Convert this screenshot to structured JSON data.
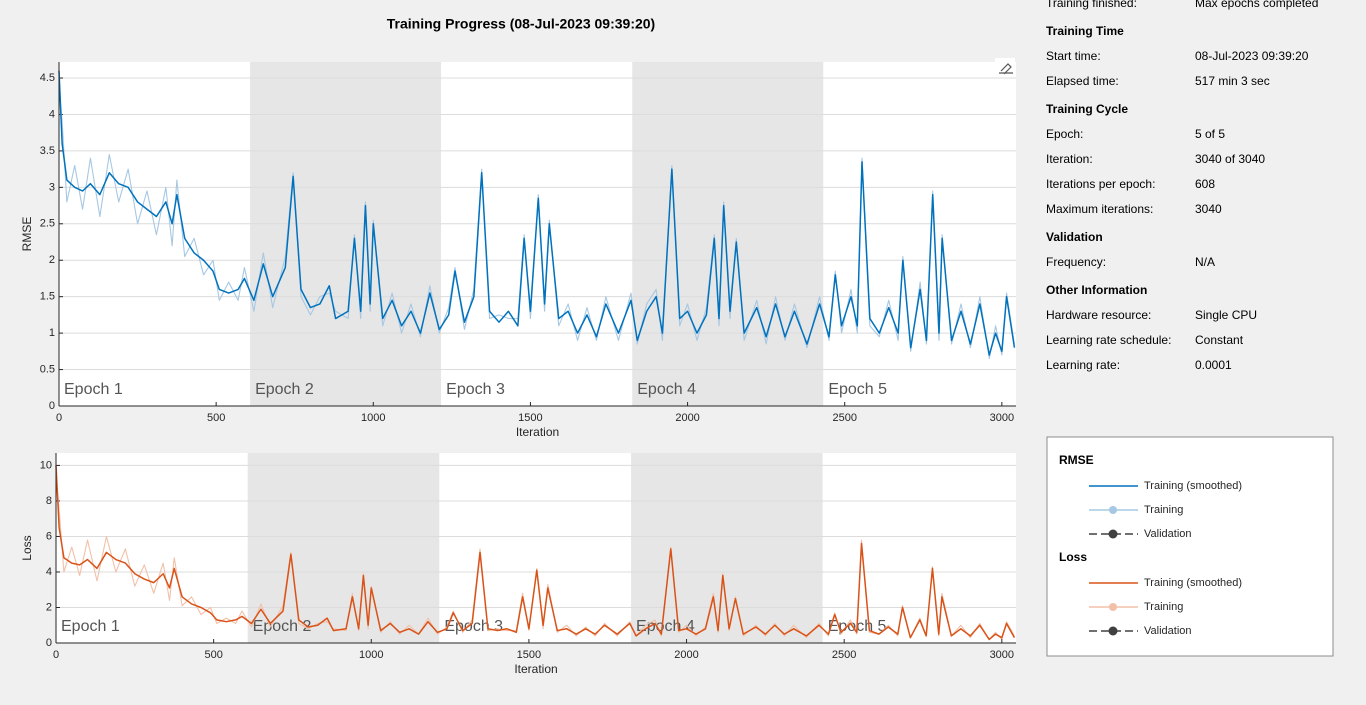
{
  "chart_data": [
    {
      "type": "line",
      "title": "Training Progress (08-Jul-2023 09:39:20)",
      "ylabel": "RMSE",
      "xlabel": "Iteration",
      "legend_title": "RMSE",
      "validation": "Validation",
      "validation_color": "#404040",
      "xlim": [
        0,
        3045
      ],
      "xticks": [
        0,
        500,
        1000,
        1500,
        2000,
        2500,
        3000
      ],
      "ylim": [
        0,
        4.72
      ],
      "yticks": [
        0,
        0.5,
        1,
        1.5,
        2,
        2.5,
        3,
        3.5,
        4,
        4.5
      ],
      "grid": true,
      "epochs": [
        "Epoch 1",
        "Epoch 2",
        "Epoch 3",
        "Epoch 4",
        "Epoch 5"
      ],
      "epoch_bounds": [
        0,
        608,
        1216,
        1824,
        2432,
        3040
      ],
      "band_color": "#e6e6e6",
      "x": [
        0,
        10,
        25,
        50,
        75,
        100,
        130,
        160,
        190,
        220,
        250,
        280,
        310,
        340,
        360,
        375,
        400,
        430,
        460,
        490,
        510,
        540,
        570,
        590,
        620,
        650,
        680,
        720,
        745,
        770,
        800,
        830,
        860,
        880,
        920,
        940,
        960,
        975,
        990,
        1000,
        1030,
        1060,
        1090,
        1120,
        1150,
        1180,
        1210,
        1240,
        1260,
        1290,
        1320,
        1345,
        1370,
        1400,
        1430,
        1460,
        1480,
        1500,
        1525,
        1545,
        1560,
        1590,
        1620,
        1650,
        1680,
        1710,
        1740,
        1780,
        1820,
        1840,
        1870,
        1900,
        1920,
        1950,
        1975,
        2000,
        2030,
        2060,
        2085,
        2100,
        2115,
        2135,
        2155,
        2180,
        2220,
        2250,
        2280,
        2310,
        2340,
        2380,
        2420,
        2450,
        2470,
        2490,
        2520,
        2540,
        2555,
        2580,
        2610,
        2640,
        2670,
        2685,
        2710,
        2740,
        2760,
        2780,
        2800,
        2810,
        2840,
        2870,
        2900,
        2930,
        2960,
        2980,
        3000,
        3015,
        3040
      ],
      "series": [
        {
          "name": "Training (smoothed)",
          "color": "#0072bd",
          "values": [
            4.6,
            3.6,
            3.1,
            3.0,
            2.95,
            3.05,
            2.9,
            3.2,
            3.05,
            3.0,
            2.8,
            2.7,
            2.6,
            2.8,
            2.5,
            2.9,
            2.3,
            2.1,
            2.0,
            1.85,
            1.6,
            1.55,
            1.6,
            1.75,
            1.45,
            1.95,
            1.5,
            1.9,
            3.15,
            1.6,
            1.35,
            1.4,
            1.65,
            1.2,
            1.3,
            2.3,
            1.3,
            2.75,
            1.4,
            2.5,
            1.2,
            1.45,
            1.1,
            1.3,
            1.0,
            1.55,
            1.05,
            1.25,
            1.85,
            1.15,
            1.5,
            3.2,
            1.3,
            1.15,
            1.3,
            1.1,
            2.3,
            1.3,
            2.85,
            1.4,
            2.5,
            1.2,
            1.3,
            1.0,
            1.25,
            0.95,
            1.4,
            1.0,
            1.45,
            0.9,
            1.3,
            1.5,
            1.0,
            3.25,
            1.2,
            1.3,
            1.0,
            1.25,
            2.3,
            1.2,
            2.75,
            1.3,
            2.25,
            1.0,
            1.35,
            0.95,
            1.4,
            0.95,
            1.3,
            0.85,
            1.4,
            0.95,
            1.8,
            1.1,
            1.5,
            1.1,
            3.35,
            1.2,
            1.0,
            1.35,
            1.0,
            2.0,
            0.8,
            1.6,
            0.9,
            2.9,
            1.0,
            2.3,
            0.9,
            1.3,
            0.85,
            1.4,
            0.7,
            1.0,
            0.75,
            1.5,
            0.8
          ]
        },
        {
          "name": "Training",
          "color": "#a6c8e4",
          "values": [
            4.4,
            3.9,
            2.8,
            3.3,
            2.7,
            3.4,
            2.6,
            3.45,
            2.8,
            3.25,
            2.5,
            2.95,
            2.35,
            3.0,
            2.2,
            3.1,
            2.05,
            2.3,
            1.8,
            2.0,
            1.45,
            1.7,
            1.45,
            1.9,
            1.3,
            2.1,
            1.35,
            2.05,
            3.2,
            1.5,
            1.25,
            1.5,
            1.55,
            1.3,
            1.2,
            2.35,
            1.2,
            2.8,
            1.3,
            2.55,
            1.1,
            1.55,
            1.0,
            1.4,
            0.95,
            1.65,
            1.0,
            1.35,
            1.9,
            1.05,
            1.6,
            3.25,
            1.2,
            1.25,
            1.2,
            1.2,
            2.35,
            1.2,
            2.9,
            1.3,
            2.55,
            1.1,
            1.4,
            0.9,
            1.35,
            0.9,
            1.5,
            0.9,
            1.55,
            0.85,
            1.4,
            1.6,
            0.9,
            3.3,
            1.1,
            1.4,
            0.9,
            1.35,
            2.35,
            1.1,
            2.8,
            1.2,
            2.3,
            0.9,
            1.45,
            0.85,
            1.5,
            0.9,
            1.4,
            0.8,
            1.5,
            0.9,
            1.85,
            1.0,
            1.6,
            1.0,
            3.4,
            1.1,
            0.95,
            1.45,
            0.9,
            2.05,
            0.75,
            1.7,
            0.85,
            2.95,
            0.9,
            2.35,
            0.85,
            1.4,
            0.8,
            1.5,
            0.65,
            1.1,
            0.7,
            1.55,
            0.85
          ]
        }
      ]
    },
    {
      "type": "line",
      "ylabel": "Loss",
      "xlabel": "Iteration",
      "legend_title": "Loss",
      "validation": "Validation",
      "validation_color": "#404040",
      "xlim": [
        0,
        3045
      ],
      "xticks": [
        0,
        500,
        1000,
        1500,
        2000,
        2500,
        3000
      ],
      "ylim": [
        0,
        10.7
      ],
      "yticks": [
        0,
        2,
        4,
        6,
        8,
        10
      ],
      "grid": true,
      "epochs": [
        "Epoch 1",
        "Epoch 2",
        "Epoch 3",
        "Epoch 4",
        "Epoch 5"
      ],
      "epoch_bounds": [
        0,
        608,
        1216,
        1824,
        2432,
        3040
      ],
      "band_color": "#e6e6e6",
      "x": [
        0,
        10,
        25,
        50,
        75,
        100,
        130,
        160,
        190,
        220,
        250,
        280,
        310,
        340,
        360,
        375,
        400,
        430,
        460,
        490,
        510,
        540,
        570,
        590,
        620,
        650,
        680,
        720,
        745,
        770,
        800,
        830,
        860,
        880,
        920,
        940,
        960,
        975,
        990,
        1000,
        1030,
        1060,
        1090,
        1120,
        1150,
        1180,
        1210,
        1240,
        1260,
        1290,
        1320,
        1345,
        1370,
        1400,
        1430,
        1460,
        1480,
        1500,
        1525,
        1545,
        1560,
        1590,
        1620,
        1650,
        1680,
        1710,
        1740,
        1780,
        1820,
        1840,
        1870,
        1900,
        1920,
        1950,
        1975,
        2000,
        2030,
        2060,
        2085,
        2100,
        2115,
        2135,
        2155,
        2180,
        2220,
        2250,
        2280,
        2310,
        2340,
        2380,
        2420,
        2450,
        2470,
        2490,
        2520,
        2540,
        2555,
        2580,
        2610,
        2640,
        2670,
        2685,
        2710,
        2740,
        2760,
        2780,
        2800,
        2810,
        2840,
        2870,
        2900,
        2930,
        2960,
        2980,
        3000,
        3015,
        3040
      ],
      "series": [
        {
          "name": "Training (smoothed)",
          "color": "#d95319",
          "values": [
            10.0,
            6.5,
            4.8,
            4.5,
            4.4,
            4.7,
            4.2,
            5.1,
            4.7,
            4.5,
            3.9,
            3.6,
            3.4,
            3.9,
            3.1,
            4.2,
            2.6,
            2.2,
            2.0,
            1.7,
            1.3,
            1.2,
            1.3,
            1.5,
            1.1,
            1.9,
            1.1,
            1.8,
            5.0,
            1.3,
            0.9,
            1.0,
            1.4,
            0.7,
            0.8,
            2.6,
            0.8,
            3.8,
            1.0,
            3.1,
            0.7,
            1.1,
            0.6,
            0.8,
            0.5,
            1.2,
            0.6,
            0.8,
            1.7,
            0.7,
            1.1,
            5.1,
            0.8,
            0.7,
            0.8,
            0.6,
            2.6,
            0.8,
            4.1,
            1.0,
            3.1,
            0.7,
            0.8,
            0.5,
            0.8,
            0.5,
            1.0,
            0.5,
            1.1,
            0.4,
            0.8,
            1.1,
            0.5,
            5.3,
            0.7,
            0.8,
            0.5,
            0.8,
            2.6,
            0.7,
            3.8,
            0.8,
            2.5,
            0.5,
            0.9,
            0.5,
            1.0,
            0.5,
            0.8,
            0.4,
            1.0,
            0.5,
            1.6,
            0.6,
            1.1,
            0.6,
            5.6,
            0.7,
            0.5,
            0.9,
            0.5,
            2.0,
            0.3,
            1.3,
            0.4,
            4.2,
            0.5,
            2.6,
            0.4,
            0.8,
            0.4,
            1.0,
            0.2,
            0.5,
            0.3,
            1.1,
            0.3
          ]
        },
        {
          "name": "Training",
          "color": "#f2c0a8",
          "values": [
            9.5,
            7.5,
            4.0,
            5.4,
            3.8,
            5.8,
            3.5,
            6.0,
            4.0,
            5.3,
            3.2,
            4.4,
            2.8,
            4.5,
            2.4,
            4.8,
            2.1,
            2.6,
            1.6,
            2.0,
            1.1,
            1.4,
            1.1,
            1.8,
            0.9,
            2.2,
            0.9,
            2.1,
            5.1,
            1.1,
            0.8,
            1.1,
            1.2,
            0.8,
            0.7,
            2.8,
            0.7,
            3.9,
            0.8,
            3.2,
            0.6,
            1.2,
            0.5,
            1.0,
            0.5,
            1.4,
            0.5,
            0.9,
            1.8,
            0.6,
            1.3,
            5.3,
            0.7,
            0.8,
            0.7,
            0.7,
            2.8,
            0.7,
            4.2,
            0.8,
            3.3,
            0.6,
            1.0,
            0.4,
            0.9,
            0.4,
            1.1,
            0.4,
            1.2,
            0.4,
            1.0,
            1.3,
            0.4,
            5.4,
            0.6,
            1.0,
            0.4,
            0.9,
            2.8,
            0.6,
            3.9,
            0.7,
            2.6,
            0.4,
            1.0,
            0.4,
            1.1,
            0.4,
            1.0,
            0.3,
            1.1,
            0.4,
            1.7,
            0.5,
            1.3,
            0.5,
            5.8,
            0.6,
            0.5,
            1.0,
            0.4,
            2.1,
            0.3,
            1.4,
            0.4,
            4.3,
            0.4,
            2.8,
            0.4,
            1.0,
            0.3,
            1.1,
            0.2,
            0.6,
            0.2,
            1.2,
            0.4
          ]
        }
      ]
    }
  ],
  "info": {
    "status": [
      "Training finished:",
      "Max epochs completed"
    ],
    "sections": [
      {
        "heading": "Training Time",
        "rows": [
          [
            "Start time:",
            "08-Jul-2023 09:39:20"
          ],
          [
            "Elapsed time:",
            "517 min 3 sec"
          ]
        ]
      },
      {
        "heading": "Training Cycle",
        "rows": [
          [
            "Epoch:",
            "5 of 5"
          ],
          [
            "Iteration:",
            "3040 of 3040"
          ],
          [
            "Iterations per epoch:",
            "608"
          ],
          [
            "Maximum iterations:",
            "3040"
          ]
        ]
      },
      {
        "heading": "Validation",
        "rows": [
          [
            "Frequency:",
            "N/A"
          ]
        ]
      },
      {
        "heading": "Other Information",
        "rows": [
          [
            "Hardware resource:",
            "Single CPU"
          ],
          [
            "Learning rate schedule:",
            "Constant"
          ],
          [
            "Learning rate:",
            "0.0001"
          ]
        ]
      }
    ]
  }
}
